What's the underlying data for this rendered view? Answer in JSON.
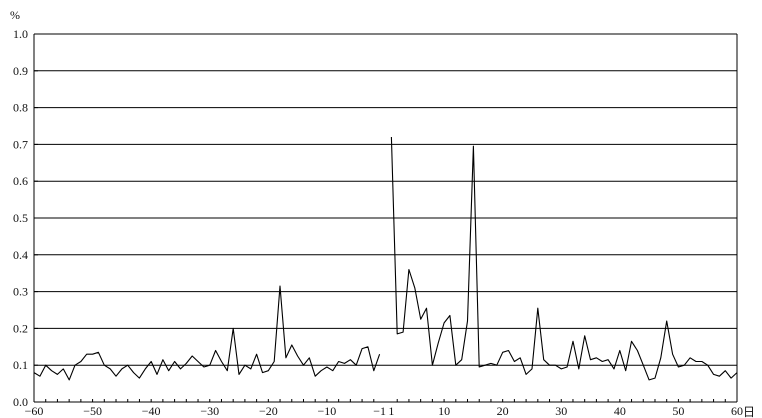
{
  "chart_data": {
    "type": "line",
    "title": "",
    "ylabel_unit": "%",
    "xlabel_unit": "日",
    "xlim": [
      -60,
      60
    ],
    "ylim": [
      0.0,
      1.0
    ],
    "grid": "horizontal",
    "x_tick_labels": [
      "−60",
      "−50",
      "−40",
      "−30",
      "−20",
      "−10",
      "−1",
      "1",
      "10",
      "20",
      "30",
      "40",
      "50",
      "60"
    ],
    "y_tick_labels": [
      "0.0",
      "0.1",
      "0.2",
      "0.3",
      "0.4",
      "0.5",
      "0.6",
      "0.7",
      "0.8",
      "0.9",
      "1.0"
    ],
    "series": [
      {
        "segment": "before",
        "x": [
          -60,
          -59,
          -58,
          -57,
          -56,
          -55,
          -54,
          -53,
          -52,
          -51,
          -50,
          -49,
          -48,
          -47,
          -46,
          -45,
          -44,
          -43,
          -42,
          -41,
          -40,
          -39,
          -38,
          -37,
          -36,
          -35,
          -34,
          -33,
          -32,
          -31,
          -30,
          -29,
          -28,
          -27,
          -26,
          -25,
          -24,
          -23,
          -22,
          -21,
          -20,
          -19,
          -18,
          -17,
          -16,
          -15,
          -14,
          -13,
          -12,
          -11,
          -10,
          -9,
          -8,
          -7,
          -6,
          -5,
          -4,
          -3,
          -2,
          -1
        ],
        "values": [
          0.08,
          0.07,
          0.1,
          0.085,
          0.075,
          0.09,
          0.06,
          0.1,
          0.11,
          0.13,
          0.13,
          0.135,
          0.1,
          0.09,
          0.07,
          0.09,
          0.1,
          0.08,
          0.065,
          0.09,
          0.11,
          0.075,
          0.115,
          0.085,
          0.11,
          0.09,
          0.105,
          0.125,
          0.11,
          0.095,
          0.1,
          0.14,
          0.11,
          0.085,
          0.2,
          0.075,
          0.1,
          0.09,
          0.13,
          0.08,
          0.085,
          0.11,
          0.315,
          0.12,
          0.155,
          0.125,
          0.1,
          0.12,
          0.07,
          0.085,
          0.095,
          0.085,
          0.11,
          0.105,
          0.115,
          0.1,
          0.145,
          0.15,
          0.085,
          0.13
        ]
      },
      {
        "segment": "after",
        "x": [
          1,
          2,
          3,
          4,
          5,
          6,
          7,
          8,
          9,
          10,
          11,
          12,
          13,
          14,
          15,
          16,
          17,
          18,
          19,
          20,
          21,
          22,
          23,
          24,
          25,
          26,
          27,
          28,
          29,
          30,
          31,
          32,
          33,
          34,
          35,
          36,
          37,
          38,
          39,
          40,
          41,
          42,
          43,
          44,
          45,
          46,
          47,
          48,
          49,
          50,
          51,
          52,
          53,
          54,
          55,
          56,
          57,
          58,
          59,
          60
        ],
        "values": [
          0.72,
          0.185,
          0.19,
          0.36,
          0.31,
          0.225,
          0.255,
          0.1,
          0.16,
          0.215,
          0.235,
          0.1,
          0.115,
          0.22,
          0.695,
          0.095,
          0.1,
          0.105,
          0.1,
          0.135,
          0.14,
          0.11,
          0.12,
          0.075,
          0.09,
          0.255,
          0.115,
          0.1,
          0.1,
          0.09,
          0.095,
          0.165,
          0.09,
          0.18,
          0.115,
          0.12,
          0.11,
          0.115,
          0.09,
          0.14,
          0.085,
          0.165,
          0.14,
          0.1,
          0.06,
          0.065,
          0.12,
          0.22,
          0.13,
          0.095,
          0.1,
          0.12,
          0.11,
          0.11,
          0.1,
          0.075,
          0.07,
          0.085,
          0.065,
          0.08
        ]
      }
    ]
  }
}
